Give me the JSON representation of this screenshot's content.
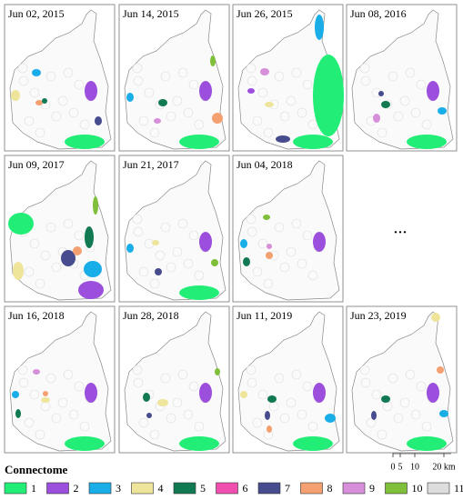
{
  "panels": [
    {
      "date": "Jun 02, 2015"
    },
    {
      "date": "Jun 14, 2015"
    },
    {
      "date": "Jun 26, 2015"
    },
    {
      "date": "Jun 08, 2016"
    },
    {
      "date": "Jun 09, 2017"
    },
    {
      "date": "Jun 21, 2017"
    },
    {
      "date": "Jun 04, 2018"
    },
    {
      "date": "Jun 16, 2018"
    },
    {
      "date": "Jun 28, 2018"
    },
    {
      "date": "Jun 11, 2019"
    },
    {
      "date": "Jun 23, 2019"
    }
  ],
  "ellipsis": "...",
  "legend": {
    "title": "Connectome",
    "items": [
      {
        "label": "1",
        "color": "#22ee77"
      },
      {
        "label": "2",
        "color": "#9b4fdc"
      },
      {
        "label": "3",
        "color": "#1aaee8"
      },
      {
        "label": "4",
        "color": "#eee59a"
      },
      {
        "label": "5",
        "color": "#127a52"
      },
      {
        "label": "6",
        "color": "#f04fb0"
      },
      {
        "label": "7",
        "color": "#464c8e"
      },
      {
        "label": "8",
        "color": "#f5a070"
      },
      {
        "label": "9",
        "color": "#d68fd8"
      },
      {
        "label": "10",
        "color": "#7fbf3a"
      },
      {
        "label": "11",
        "color": "#dddddd"
      }
    ]
  },
  "scale_bar": {
    "labels": [
      "0",
      "5",
      "10",
      "20 km"
    ]
  }
}
